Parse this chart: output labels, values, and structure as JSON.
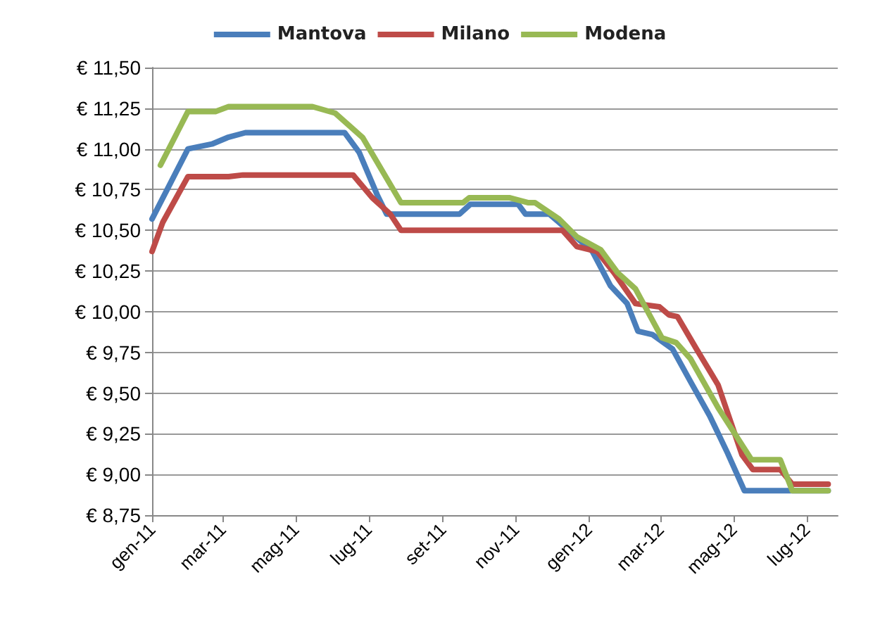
{
  "chart_data": {
    "type": "line",
    "legend": "top",
    "grid": "y",
    "marker": "none",
    "line_style": "solid",
    "xlim": [
      "2011-01-01",
      "2012-07-27"
    ],
    "xticks": [
      {
        "value": "2011-01-01",
        "label": "gen-11"
      },
      {
        "value": "2011-03-01",
        "label": "mar-11"
      },
      {
        "value": "2011-05-01",
        "label": "mag-11"
      },
      {
        "value": "2011-07-01",
        "label": "lug-11"
      },
      {
        "value": "2011-09-01",
        "label": "set-11"
      },
      {
        "value": "2011-11-01",
        "label": "nov-11"
      },
      {
        "value": "2012-01-01",
        "label": "gen-12"
      },
      {
        "value": "2012-03-01",
        "label": "mar-12"
      },
      {
        "value": "2012-05-01",
        "label": "mag-12"
      },
      {
        "value": "2012-07-01",
        "label": "lug-12"
      }
    ],
    "ylim": [
      8.75,
      11.5
    ],
    "yticks": [
      {
        "value": 8.75,
        "label": "€ 8,75"
      },
      {
        "value": 9,
        "label": "€ 9,00"
      },
      {
        "value": 9.25,
        "label": "€ 9,25"
      },
      {
        "value": 9.5,
        "label": "€ 9,50"
      },
      {
        "value": 9.75,
        "label": "€ 9,75"
      },
      {
        "value": 10,
        "label": "€ 10,00"
      },
      {
        "value": 10.25,
        "label": "€ 10,25"
      },
      {
        "value": 10.5,
        "label": "€ 10,50"
      },
      {
        "value": 10.75,
        "label": "€ 10,75"
      },
      {
        "value": 11,
        "label": "€ 11,00"
      },
      {
        "value": 11.25,
        "label": "€ 11,25"
      },
      {
        "value": 11.5,
        "label": "€ 11,50"
      }
    ],
    "series": [
      {
        "name": "Mantova",
        "color": "#4a7ebb",
        "x": [
          "2011-01-01",
          "2011-01-31",
          "2011-02-20",
          "2011-03-05",
          "2011-03-20",
          "2011-06-11",
          "2011-06-23",
          "2011-07-08",
          "2011-07-16",
          "2011-09-15",
          "2011-09-24",
          "2011-11-03",
          "2011-11-09",
          "2011-11-29",
          "2011-12-18",
          "2012-01-04",
          "2012-01-19",
          "2012-02-02",
          "2012-02-11",
          "2012-02-23",
          "2012-03-11",
          "2012-03-26",
          "2012-04-11",
          "2012-04-26",
          "2012-05-10",
          "2012-07-19"
        ],
        "values": [
          10.57,
          11.0,
          11.03,
          11.07,
          11.1,
          11.1,
          10.98,
          10.72,
          10.6,
          10.6,
          10.66,
          10.66,
          10.6,
          10.6,
          10.48,
          10.37,
          10.16,
          10.05,
          9.88,
          9.86,
          9.77,
          9.57,
          9.36,
          9.13,
          8.9,
          8.9
        ]
      },
      {
        "name": "Milano",
        "color": "#be4b48",
        "x": [
          "2011-01-01",
          "2011-01-10",
          "2011-01-31",
          "2011-03-06",
          "2011-03-18",
          "2011-06-18",
          "2011-07-04",
          "2011-07-19",
          "2011-07-28",
          "2011-12-10",
          "2011-12-22",
          "2012-01-08",
          "2012-01-22",
          "2012-02-09",
          "2012-02-29",
          "2012-03-08",
          "2012-03-15",
          "2012-03-31",
          "2012-04-18",
          "2012-05-08",
          "2012-05-17",
          "2012-06-09",
          "2012-06-19",
          "2012-07-19"
        ],
        "values": [
          10.37,
          10.55,
          10.83,
          10.83,
          10.84,
          10.84,
          10.7,
          10.6,
          10.5,
          10.5,
          10.4,
          10.37,
          10.24,
          10.05,
          10.03,
          9.98,
          9.97,
          9.77,
          9.55,
          9.12,
          9.03,
          9.03,
          8.94,
          8.94
        ]
      },
      {
        "name": "Modena",
        "color": "#98b954",
        "x": [
          "2011-01-08",
          "2011-01-31",
          "2011-02-23",
          "2011-03-06",
          "2011-05-15",
          "2011-06-03",
          "2011-06-26",
          "2011-07-28",
          "2011-09-18",
          "2011-09-23",
          "2011-10-27",
          "2011-11-11",
          "2011-11-17",
          "2011-12-07",
          "2011-12-22",
          "2012-01-11",
          "2012-01-25",
          "2012-02-09",
          "2012-03-02",
          "2012-03-14",
          "2012-03-26",
          "2012-04-18",
          "2012-05-16",
          "2012-06-09",
          "2012-06-19",
          "2012-07-19"
        ],
        "values": [
          10.9,
          11.23,
          11.23,
          11.26,
          11.26,
          11.22,
          11.07,
          10.67,
          10.67,
          10.7,
          10.7,
          10.67,
          10.67,
          10.57,
          10.46,
          10.38,
          10.24,
          10.14,
          9.84,
          9.81,
          9.71,
          9.41,
          9.09,
          9.09,
          8.9,
          8.9
        ]
      }
    ]
  }
}
